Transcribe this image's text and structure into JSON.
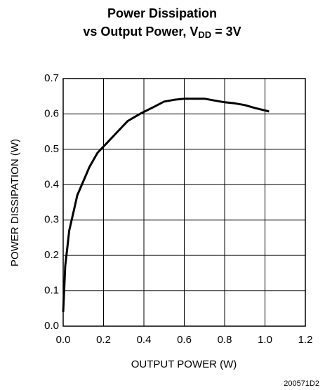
{
  "chart_data": {
    "type": "line",
    "title": {
      "line1": "Power Dissipation",
      "line2": "vs Output Power, V",
      "subscript": "DD",
      "line2_end": " = 3V"
    },
    "xlabel": "OUTPUT POWER (W)",
    "ylabel": "POWER DISSIPATION (W)",
    "annotation": "200571D2",
    "x": [
      0.0,
      0.005,
      0.01,
      0.02,
      0.03,
      0.05,
      0.07,
      0.1,
      0.13,
      0.17,
      0.22,
      0.27,
      0.32,
      0.38,
      0.45,
      0.5,
      0.55,
      0.6,
      0.7,
      0.75,
      0.8,
      0.85,
      0.9,
      0.95,
      1.02
    ],
    "series": [
      {
        "color": "#000000",
        "values": [
          0.04,
          0.1,
          0.17,
          0.22,
          0.27,
          0.32,
          0.37,
          0.41,
          0.45,
          0.49,
          0.52,
          0.55,
          0.58,
          0.6,
          0.62,
          0.635,
          0.64,
          0.643,
          0.643,
          0.638,
          0.633,
          0.63,
          0.625,
          0.617,
          0.607
        ]
      }
    ],
    "xlim": [
      0,
      1.2
    ],
    "ylim": [
      0,
      0.7
    ],
    "xticks": [
      {
        "value": 0,
        "label": "0.0"
      },
      0.2,
      0.4,
      0.6,
      0.8,
      {
        "value": 1,
        "label": "1.0"
      },
      1.2
    ],
    "yticks": [
      {
        "value": 0,
        "label": "0.0"
      },
      0.1,
      0.2,
      0.3,
      0.4,
      0.5,
      0.6,
      0.7
    ],
    "grid": true
  }
}
